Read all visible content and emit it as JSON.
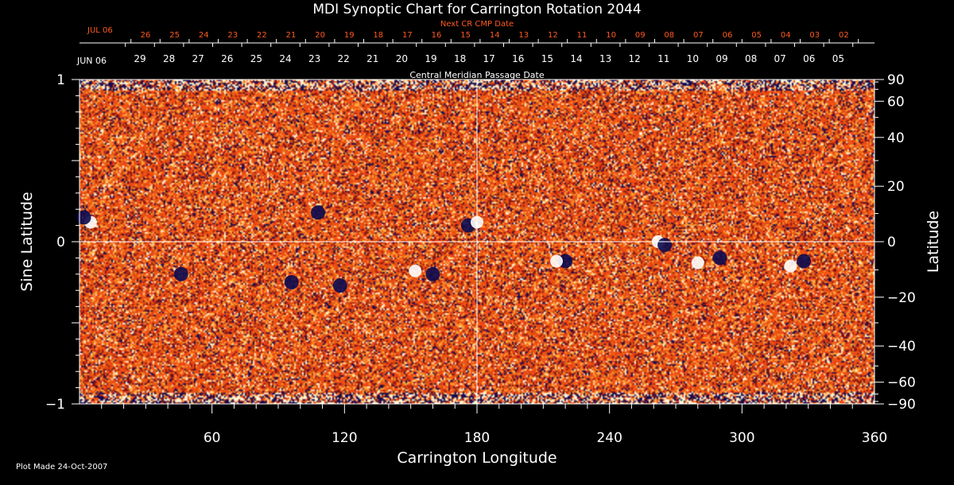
{
  "chart_data": {
    "type": "heatmap",
    "title": "MDI Synoptic Chart for Carrington Rotation 2044",
    "xlabel": "Carrington Longitude",
    "ylabel_left": "Sine Latitude",
    "ylabel_right": "Latitude",
    "xlim": [
      0,
      360
    ],
    "ylim_sine": [
      -1,
      1
    ],
    "x_ticks": [
      "60",
      "120",
      "180",
      "240",
      "300",
      "360"
    ],
    "x_tick_values": [
      60,
      120,
      180,
      240,
      300,
      360
    ],
    "y_left_ticks": [
      {
        "value": 1,
        "label": "1"
      },
      {
        "value": 0,
        "label": "0"
      },
      {
        "value": -1,
        "label": "−1"
      }
    ],
    "y_right_ticks": [
      {
        "deg": 90,
        "label": "90"
      },
      {
        "deg": 60,
        "label": "60"
      },
      {
        "deg": 40,
        "label": "40"
      },
      {
        "deg": 20,
        "label": "20"
      },
      {
        "deg": 0,
        "label": "0"
      },
      {
        "deg": -20,
        "label": "−20"
      },
      {
        "deg": -40,
        "label": "−40"
      },
      {
        "deg": -60,
        "label": "−60"
      },
      {
        "deg": -90,
        "label": "−90"
      }
    ],
    "next_cr_cmp_label": "Next CR CMP Date",
    "next_cr_start_label": "JUL 06",
    "next_cr_dates": [
      "26",
      "25",
      "24",
      "23",
      "22",
      "21",
      "20",
      "19",
      "18",
      "17",
      "16",
      "15",
      "14",
      "13",
      "12",
      "11",
      "10",
      "09",
      "08",
      "07",
      "06",
      "05",
      "04",
      "03",
      "02"
    ],
    "cmp_label": "Central Meridian Passage Date",
    "cmp_start_label": "JUN 06",
    "cmp_dates": [
      "29",
      "28",
      "27",
      "26",
      "25",
      "24",
      "23",
      "22",
      "21",
      "20",
      "19",
      "18",
      "17",
      "16",
      "15",
      "14",
      "13",
      "12",
      "11",
      "10",
      "09",
      "08",
      "07",
      "06",
      "05"
    ],
    "background_color": "#e8501e",
    "positive_polarity_color": "#ffffff",
    "negative_polarity_color": "#0a0a50",
    "regions": [
      {
        "lon": 5,
        "sinlat": 0.12,
        "pol": 1
      },
      {
        "lon": 2,
        "sinlat": 0.15,
        "pol": -1
      },
      {
        "lon": 108,
        "sinlat": 0.18,
        "pol": -1
      },
      {
        "lon": 176,
        "sinlat": 0.1,
        "pol": -1
      },
      {
        "lon": 180,
        "sinlat": 0.12,
        "pol": 1
      },
      {
        "lon": 262,
        "sinlat": 0.0,
        "pol": 1
      },
      {
        "lon": 265,
        "sinlat": -0.02,
        "pol": -1
      },
      {
        "lon": 280,
        "sinlat": -0.13,
        "pol": 1
      },
      {
        "lon": 290,
        "sinlat": -0.1,
        "pol": -1
      },
      {
        "lon": 328,
        "sinlat": -0.12,
        "pol": -1
      },
      {
        "lon": 322,
        "sinlat": -0.15,
        "pol": 1
      },
      {
        "lon": 152,
        "sinlat": -0.18,
        "pol": 1
      },
      {
        "lon": 160,
        "sinlat": -0.2,
        "pol": -1
      },
      {
        "lon": 46,
        "sinlat": -0.2,
        "pol": -1
      },
      {
        "lon": 96,
        "sinlat": -0.25,
        "pol": -1
      },
      {
        "lon": 118,
        "sinlat": -0.27,
        "pol": -1
      },
      {
        "lon": 220,
        "sinlat": -0.12,
        "pol": -1
      },
      {
        "lon": 216,
        "sinlat": -0.12,
        "pol": 1
      }
    ]
  },
  "footer": {
    "plot_made": "Plot Made 24-Oct-2007"
  }
}
